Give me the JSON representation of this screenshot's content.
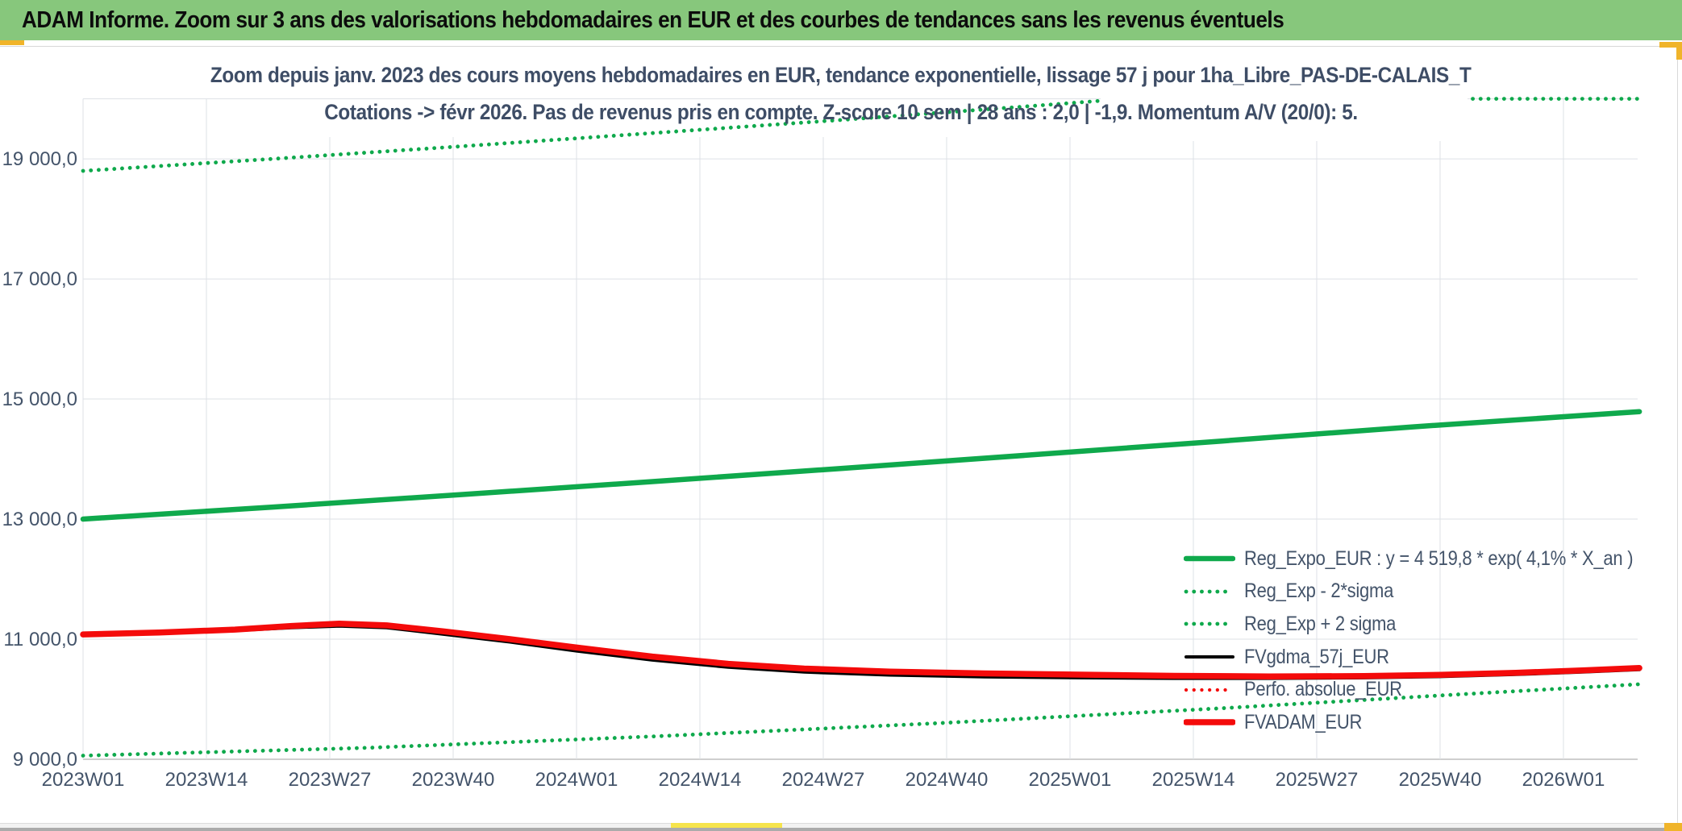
{
  "banner": {
    "title": "ADAM Informe. Zoom sur 3 ans des valorisations hebdomadaires en EUR et des courbes de tendances sans les revenus éventuels",
    "bg_color": "#87C77C"
  },
  "chart_title": {
    "line1": "Zoom depuis janv. 2023 des cours moyens hebdomadaires en EUR, tendance exponentielle, lissage 57 j pour 1ha_Libre_PAS-DE-CALAIS_T",
    "line2": "Cotations -> févr 2026. Pas de revenus pris en compte. Z-score 10 sem | 28 ans : 2,0 | -1,9. Momentum A/V (20/0): 5."
  },
  "colors": {
    "green_line": "#0FA94C",
    "red_line": "#F40B0B",
    "black_line": "#000000",
    "text_blue_gray": "#44546A",
    "gridline": "#DDE1E6",
    "axis_line": "#BFBFBF",
    "banner_green": "#87C77C",
    "amber_accent": "#F0B42A"
  },
  "chart_data": {
    "type": "line",
    "title": "Zoom depuis janv. 2023 des cours moyens hebdomadaires en EUR, tendance exponentielle, lissage 57 j pour 1ha_Libre_PAS-DE-CALAIS_T",
    "subtitle": "Cotations -> févr 2026. Pas de revenus pris en compte. Z-score 10 sem | 28 ans : 2,0 | -1,9. Momentum A/V (20/0): 5.",
    "x_unit": "ISO week (weeks since 2023W01)",
    "ylim": [
      9000,
      20000
    ],
    "grid": true,
    "legend_position": "inside-right-bottom",
    "y_ticks": [
      {
        "label": "19 000,0",
        "value": 19000
      },
      {
        "label": "17 000,0",
        "value": 17000
      },
      {
        "label": "15 000,0",
        "value": 15000
      },
      {
        "label": "13 000,0",
        "value": 13000
      },
      {
        "label": "11 000,0",
        "value": 11000
      },
      {
        "label": "9 000,0",
        "value": 9000
      }
    ],
    "x_ticks": [
      {
        "label": "2023W01",
        "week": 0
      },
      {
        "label": "2023W14",
        "week": 13
      },
      {
        "label": "2023W27",
        "week": 26
      },
      {
        "label": "2023W40",
        "week": 39
      },
      {
        "label": "2024W01",
        "week": 52
      },
      {
        "label": "2024W14",
        "week": 65
      },
      {
        "label": "2024W27",
        "week": 78
      },
      {
        "label": "2024W40",
        "week": 91
      },
      {
        "label": "2025W01",
        "week": 104
      },
      {
        "label": "2025W14",
        "week": 117
      },
      {
        "label": "2025W27",
        "week": 130
      },
      {
        "label": "2025W40",
        "week": 143
      },
      {
        "label": "2026W01",
        "week": 156
      }
    ],
    "series": [
      {
        "id": "reg_expo",
        "name": "Reg_Expo_EUR : y = 4 519,8 * exp( 4,1% *  X_an )",
        "color": "#0FA94C",
        "style": "solid",
        "width": 6.5,
        "points": [
          [
            0,
            13000
          ],
          [
            20,
            13200
          ],
          [
            40,
            13410
          ],
          [
            60,
            13625
          ],
          [
            80,
            13845
          ],
          [
            100,
            14070
          ],
          [
            120,
            14300
          ],
          [
            140,
            14535
          ],
          [
            164,
            14790
          ]
        ]
      },
      {
        "id": "minus2sigma",
        "name": "Reg_Exp - 2*sigma",
        "color": "#0FA94C",
        "style": "dotted",
        "width": 4.8,
        "points": [
          [
            0,
            9060
          ],
          [
            30,
            9190
          ],
          [
            60,
            9380
          ],
          [
            90,
            9600
          ],
          [
            120,
            9850
          ],
          [
            145,
            10080
          ],
          [
            164,
            10250
          ]
        ]
      },
      {
        "id": "plus2sigma",
        "name": "Reg_Exp + 2 sigma",
        "color": "#0FA94C",
        "style": "dotted",
        "width": 4.8,
        "points": [
          [
            0,
            18800
          ],
          [
            20,
            19000
          ],
          [
            40,
            19210
          ],
          [
            60,
            19430
          ],
          [
            80,
            19650
          ],
          [
            100,
            19880
          ],
          [
            110,
            20010
          ],
          [
            125,
            20150
          ],
          [
            164,
            20480
          ]
        ]
      },
      {
        "id": "fvgdma",
        "name": "FVgdma_57j_EUR",
        "color": "#000000",
        "style": "solid",
        "width": 3.6,
        "points": [
          [
            0,
            11065
          ],
          [
            8,
            11095
          ],
          [
            16,
            11140
          ],
          [
            22,
            11190
          ],
          [
            27,
            11215
          ],
          [
            32,
            11190
          ],
          [
            38,
            11080
          ],
          [
            45,
            10950
          ],
          [
            52,
            10800
          ],
          [
            60,
            10650
          ],
          [
            68,
            10530
          ],
          [
            76,
            10450
          ],
          [
            85,
            10400
          ],
          [
            95,
            10370
          ],
          [
            105,
            10355
          ],
          [
            115,
            10345
          ],
          [
            125,
            10345
          ],
          [
            135,
            10355
          ],
          [
            143,
            10375
          ],
          [
            151,
            10410
          ],
          [
            158,
            10450
          ],
          [
            164,
            10490
          ]
        ]
      },
      {
        "id": "perfo_absolue",
        "name": "Perfo. absolue_EUR",
        "color": "#F40B0B",
        "style": "dotted",
        "width": 4.2,
        "points": [
          [
            0,
            11080
          ],
          [
            8,
            11110
          ],
          [
            16,
            11160
          ],
          [
            22,
            11220
          ],
          [
            27,
            11260
          ],
          [
            32,
            11230
          ],
          [
            38,
            11130
          ],
          [
            45,
            11000
          ],
          [
            52,
            10860
          ],
          [
            60,
            10710
          ],
          [
            68,
            10590
          ],
          [
            76,
            10510
          ],
          [
            85,
            10460
          ],
          [
            95,
            10430
          ],
          [
            105,
            10410
          ],
          [
            115,
            10390
          ],
          [
            125,
            10380
          ],
          [
            135,
            10385
          ],
          [
            143,
            10405
          ],
          [
            151,
            10440
          ],
          [
            158,
            10480
          ],
          [
            164,
            10520
          ]
        ]
      },
      {
        "id": "fvadam",
        "name": "FVADAM_EUR",
        "color": "#F40B0B",
        "style": "solid",
        "width": 7.5,
        "points": [
          [
            0,
            11080
          ],
          [
            8,
            11110
          ],
          [
            16,
            11160
          ],
          [
            22,
            11220
          ],
          [
            27,
            11260
          ],
          [
            32,
            11230
          ],
          [
            38,
            11130
          ],
          [
            45,
            11000
          ],
          [
            52,
            10860
          ],
          [
            60,
            10710
          ],
          [
            68,
            10590
          ],
          [
            76,
            10510
          ],
          [
            85,
            10460
          ],
          [
            95,
            10430
          ],
          [
            105,
            10410
          ],
          [
            115,
            10390
          ],
          [
            125,
            10380
          ],
          [
            135,
            10385
          ],
          [
            143,
            10405
          ],
          [
            151,
            10440
          ],
          [
            158,
            10480
          ],
          [
            164,
            10520
          ]
        ]
      }
    ],
    "draw_order": [
      "minus2sigma",
      "plus2sigma",
      "reg_expo",
      "perfo_absolue",
      "fvgdma",
      "fvadam"
    ],
    "note": "values above axis max are clamped to 20000 (Excel-style), producing the flat dotted run along the plot top at right"
  }
}
